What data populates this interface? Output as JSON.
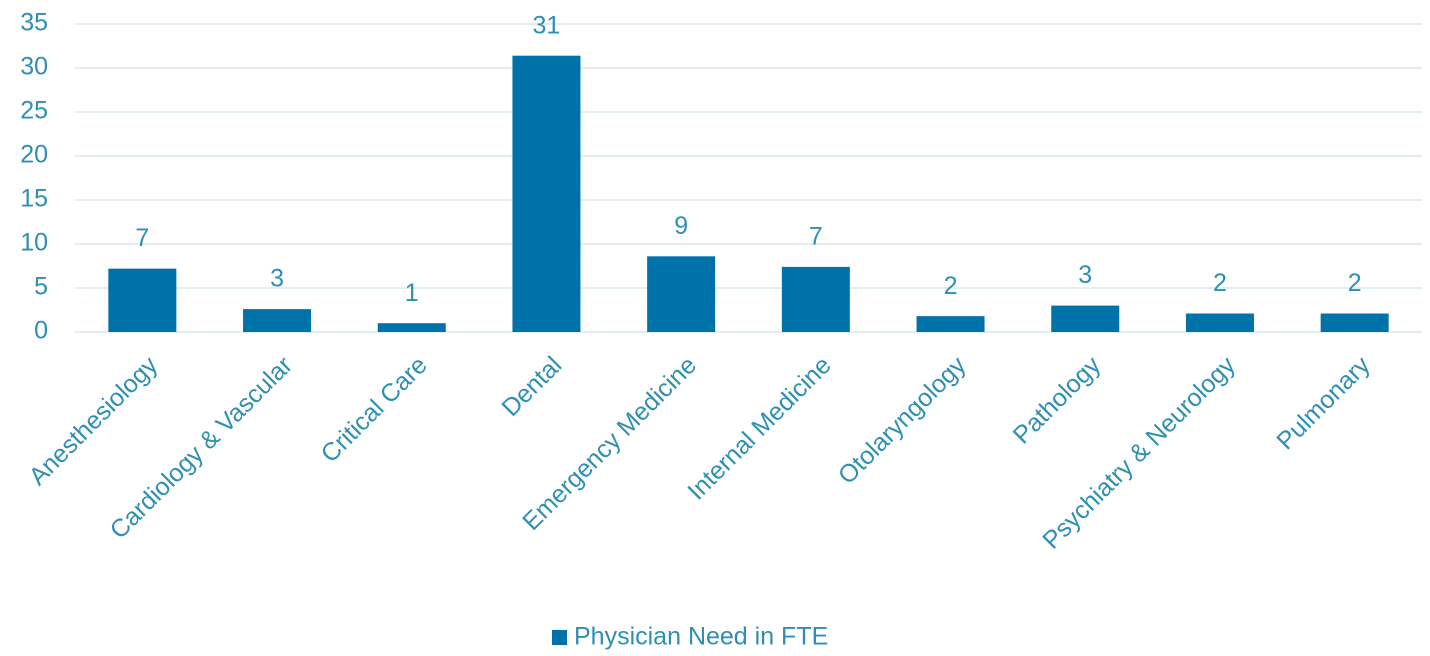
{
  "chart_data": {
    "type": "bar",
    "categories": [
      "Anesthesiology",
      "Cardiology & Vascular",
      "Critical Care",
      "Dental",
      "Emergency Medicine",
      "Internal Medicine",
      "Otolaryngology",
      "Pathology",
      "Psychiatry & Neurology",
      "Pulmonary"
    ],
    "series": [
      {
        "name": "Physician Need in FTE",
        "color": "#0072aa",
        "values": [
          7.2,
          2.6,
          1.0,
          31.4,
          8.6,
          7.4,
          1.8,
          3.0,
          2.1,
          2.1
        ],
        "value_labels": [
          "7",
          "3",
          "1",
          "31",
          "9",
          "7",
          "2",
          "3",
          "2",
          "2"
        ]
      }
    ],
    "ylim": [
      0,
      35
    ],
    "yticks": [
      0,
      5,
      10,
      15,
      20,
      25,
      30,
      35
    ],
    "grid": true,
    "legend": "bottom"
  }
}
